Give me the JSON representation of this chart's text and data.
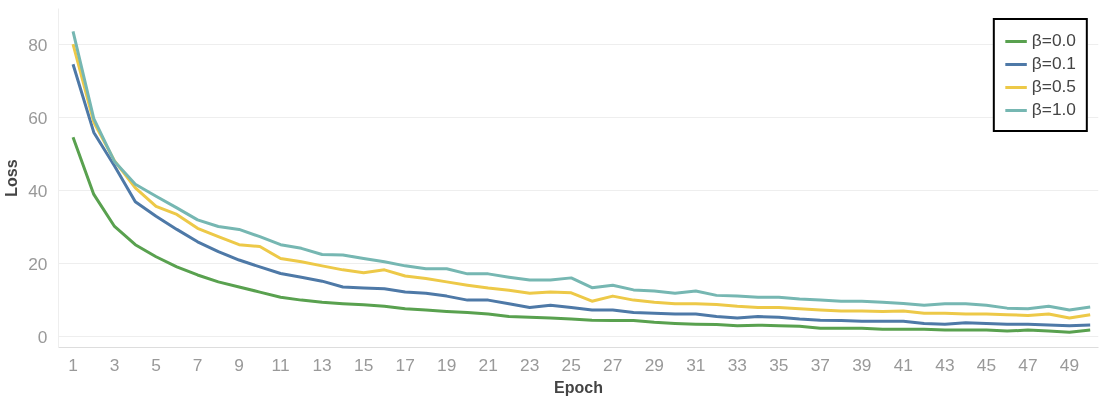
{
  "chart_data": {
    "type": "line",
    "xlabel": "Epoch",
    "ylabel": "Loss",
    "x": [
      1,
      2,
      3,
      4,
      5,
      6,
      7,
      8,
      9,
      10,
      11,
      12,
      13,
      14,
      15,
      16,
      17,
      18,
      19,
      20,
      21,
      22,
      23,
      24,
      25,
      26,
      27,
      28,
      29,
      30,
      31,
      32,
      33,
      34,
      35,
      36,
      37,
      38,
      39,
      40,
      41,
      42,
      43,
      44,
      45,
      46,
      47,
      48,
      49,
      50
    ],
    "xlim": [
      0.3,
      50.4
    ],
    "xticks": [
      1,
      3,
      5,
      7,
      9,
      11,
      13,
      15,
      17,
      19,
      21,
      23,
      25,
      27,
      29,
      31,
      33,
      35,
      37,
      39,
      41,
      43,
      45,
      47,
      49
    ],
    "ylim": [
      -3,
      90
    ],
    "yticks": [
      0,
      20,
      40,
      60,
      80
    ],
    "grid": "y",
    "legend": "top right",
    "marker": "none",
    "line_style": "solid",
    "series": [
      {
        "name": "β=0.0",
        "color": "#59a14f",
        "values": [
          54.7,
          39,
          30.2,
          25.2,
          21.9,
          19.1,
          16.9,
          15,
          13.6,
          12.2,
          10.8,
          10,
          9.4,
          9,
          8.7,
          8.3,
          7.6,
          7.3,
          6.9,
          6.6,
          6.2,
          5.5,
          5.3,
          5.1,
          4.8,
          4.5,
          4.4,
          4.4,
          3.9,
          3.6,
          3.4,
          3.3,
          3,
          3.1,
          3,
          2.8,
          2.3,
          2.3,
          2.3,
          2,
          2,
          2,
          1.8,
          1.8,
          1.8,
          1.5,
          1.8,
          1.5,
          1.2,
          1.8
        ]
      },
      {
        "name": "β=0.1",
        "color": "#4e79a7",
        "values": [
          74.7,
          56,
          46.8,
          37,
          33,
          29.4,
          26,
          23.3,
          21,
          19.1,
          17.3,
          16.3,
          15.2,
          13.6,
          13.3,
          13.1,
          12.2,
          11.9,
          11.1,
          10,
          10,
          9,
          8,
          8.6,
          8,
          7.3,
          7.3,
          6.6,
          6.4,
          6.2,
          6.2,
          5.5,
          5.1,
          5.5,
          5.3,
          4.8,
          4.5,
          4.4,
          4.2,
          4.2,
          4.2,
          3.6,
          3.4,
          3.8,
          3.6,
          3.4,
          3.4,
          3.2,
          3,
          3.2
        ]
      },
      {
        "name": "β=0.5",
        "color": "#edc948",
        "values": [
          80.2,
          58.8,
          48.2,
          40.8,
          35.7,
          33.5,
          29.7,
          27.4,
          25.2,
          24.7,
          21.4,
          20.5,
          19.4,
          18.3,
          17.5,
          18.3,
          16.6,
          15.9,
          15,
          14.1,
          13.3,
          12.7,
          11.9,
          12.2,
          12,
          9.7,
          11.1,
          10,
          9.4,
          9,
          9,
          8.8,
          8.3,
          8,
          8,
          7.6,
          7.3,
          7,
          7,
          6.9,
          7,
          6.4,
          6.4,
          6.2,
          6.2,
          6,
          5.8,
          6.2,
          5.1,
          6
        ]
      },
      {
        "name": "β=1.0",
        "color": "#76b7b2",
        "values": [
          83.7,
          59.8,
          48,
          41.8,
          38.5,
          35.3,
          32,
          30.2,
          29.4,
          27.4,
          25.2,
          24.2,
          22.5,
          22.4,
          21.4,
          20.5,
          19.4,
          18.6,
          18.6,
          17.2,
          17.2,
          16.3,
          15.5,
          15.5,
          16.1,
          13.4,
          14.1,
          12.8,
          12.5,
          11.9,
          12.5,
          11.3,
          11.1,
          10.8,
          10.8,
          10.3,
          10,
          9.7,
          9.7,
          9.4,
          9.1,
          8.6,
          9,
          9,
          8.6,
          7.8,
          7.6,
          8.3,
          7.3,
          8.1
        ]
      }
    ]
  }
}
